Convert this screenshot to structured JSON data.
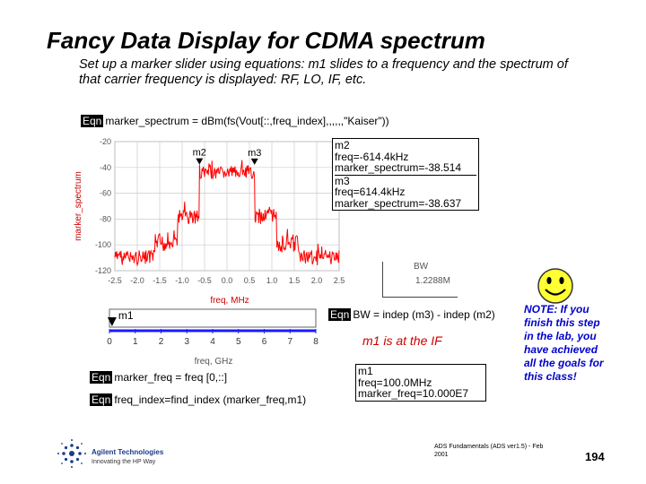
{
  "slide": {
    "title": "Fancy Data Display for CDMA spectrum",
    "subtitle": "Set up a marker slider using equations: m1 slides to a frequency and the spectrum of that carrier frequency is displayed: RF, LO, IF, etc.",
    "page_number": "194",
    "footer_line1": "ADS Fundamentals (ADS ver1.5) - Feb",
    "footer_line2": "2001"
  },
  "equations": {
    "tag": "Eqn",
    "marker_spectrum": "marker_spectrum = dBm(fs(Vout[::,freq_index],,,,,,\"Kaiser\"))",
    "bw": "BW = indep (m3) - indep (m2)",
    "marker_freq": "marker_freq = freq [0,::]",
    "freq_index": "freq_index=find_index (marker_freq,m1)"
  },
  "chart_data": {
    "type": "line",
    "title": "",
    "xlabel": "freq, MHz",
    "ylabel": "marker_spectrum",
    "xlim": [
      -2.5,
      2.5
    ],
    "ylim": [
      -120,
      -20
    ],
    "x_ticks": [
      "-2.5",
      "-2.0",
      "-1.5",
      "-1.0",
      "-0.5",
      "0.0",
      "0.5",
      "1.0",
      "1.5",
      "2.0",
      "2.5"
    ],
    "y_ticks": [
      "-20",
      "-40",
      "-60",
      "-80",
      "-100",
      "-120"
    ],
    "grid": true,
    "series_color": "#ff0000",
    "markers": [
      {
        "name": "m2",
        "x": -0.6144,
        "y": -38.514
      },
      {
        "name": "m3",
        "x": 0.6144,
        "y": -38.637
      }
    ]
  },
  "marker_readouts": [
    {
      "name": "m2",
      "freq": "freq=-614.4kHz",
      "value": "marker_spectrum=-38.514"
    },
    {
      "name": "m3",
      "freq": "freq=614.4kHz",
      "value": "marker_spectrum=-38.637"
    }
  ],
  "bw_readout": {
    "label": "BW",
    "value": "1.2288M"
  },
  "slider": {
    "marker_label": "m1",
    "axis_label": "freq, GHz",
    "ticks": [
      "0",
      "1",
      "2",
      "3",
      "4",
      "5",
      "6",
      "7",
      "8"
    ],
    "min": 0,
    "max": 8,
    "value_ghz": 0.1,
    "axis_color": "#1a1aff"
  },
  "m1_note": "m1 is at the IF",
  "m1_readout": {
    "name": "m1",
    "freq": "freq=100.0MHz",
    "value": "marker_freq=10.000E7"
  },
  "note": "NOTE: If you finish this step in the lab, you have achieved all the goals for this class!",
  "logo": {
    "name": "Agilent Technologies",
    "tagline": "Innovating the HP Way"
  }
}
